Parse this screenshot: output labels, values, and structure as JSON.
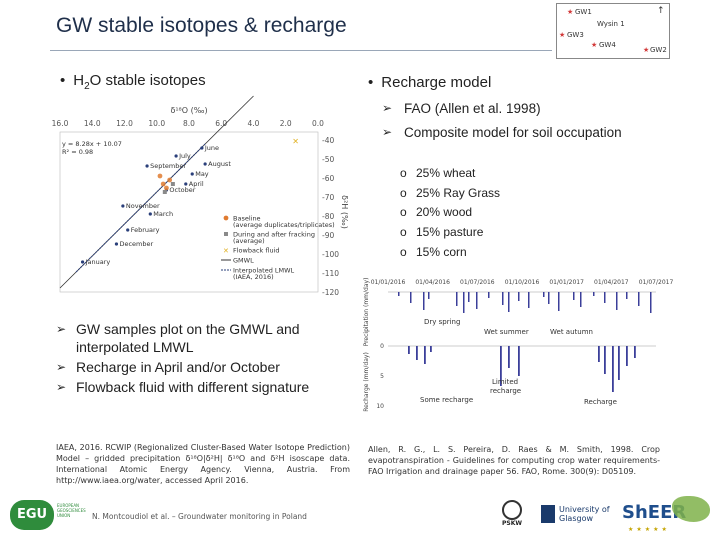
{
  "slide": {
    "title": "GW stable isotopes & recharge",
    "footer": "N. Montcoudiol et al. – Groundwater monitoring in Poland"
  },
  "minimap": {
    "labels": [
      "GW1",
      "Wysin 1",
      "GW3",
      "GW4",
      "GW2"
    ]
  },
  "left": {
    "bullet_main": "H",
    "bullet_sub": "2",
    "bullet_rest": "O stable isotopes",
    "points": [
      "GW samples plot on the GMWL and interpolated LMWL",
      "Recharge in April and/or October",
      "Flowback fluid with different signature"
    ],
    "reference": "IAEA, 2016. RCWIP (Regionalized Cluster-Based Water Isotope Prediction) Model – gridded precipitation δ¹⁸O|δ²H| δ¹⁸O and δ²H isoscape data. International Atomic Energy Agency. Vienna, Austria. From http://www.iaea.org/water, accessed April 2016."
  },
  "right": {
    "bullet": "Recharge model",
    "points": [
      "FAO (Allen et al. 1998)",
      "Composite model for soil occupation"
    ],
    "crops": [
      "25% wheat",
      "25% Ray Grass",
      "20% wood",
      "15% pasture",
      "15% corn"
    ],
    "reference": "Allen, R. G., L. S. Pereira, D. Raes & M. Smith, 1998. Crop evapotranspiration - Guidelines for computing crop water requirements-FAO Irrigation and drainage paper 56. FAO, Rome. 300(9): D05109."
  },
  "chart_data": [
    {
      "type": "scatter",
      "title": "",
      "xlabel": "δ¹⁸O (‰)",
      "ylabel": "δ²H (‰)",
      "x_ticks": [
        "16.0",
        "14.0",
        "12.0",
        "10.0",
        "8.0",
        "6.0",
        "4.0",
        "2.0",
        "0.0"
      ],
      "y_ticks": [
        "-40",
        "-50",
        "-60",
        "-70",
        "-80",
        "-90",
        "-100",
        "-110",
        "-120"
      ],
      "xlim": [
        -16,
        0
      ],
      "ylim": [
        -120,
        -40
      ],
      "equation": "y = 8.28x + 10.07",
      "r2": "R² = 0.98",
      "months": [
        {
          "label": "June",
          "x": -7.2,
          "y": -48
        },
        {
          "label": "July",
          "x": -8.8,
          "y": -52
        },
        {
          "label": "August",
          "x": -7.0,
          "y": -56
        },
        {
          "label": "September",
          "x": -10.6,
          "y": -57
        },
        {
          "label": "May",
          "x": -7.8,
          "y": -61
        },
        {
          "label": "April",
          "x": -8.2,
          "y": -66
        },
        {
          "label": "October",
          "x": -9.4,
          "y": -69
        },
        {
          "label": "November",
          "x": -12.1,
          "y": -77
        },
        {
          "label": "March",
          "x": -10.4,
          "y": -81
        },
        {
          "label": "February",
          "x": -11.8,
          "y": -89
        },
        {
          "label": "December",
          "x": -12.5,
          "y": -96
        },
        {
          "label": "January",
          "x": -14.6,
          "y": -105
        }
      ],
      "legend": [
        "Baseline (average duplicates/triplicates)",
        "During and after fracking (average)",
        "Flowback fluid",
        "GMWL",
        "Interpolated LMWL (IAEA, 2016)"
      ],
      "colors": {
        "baseline": "#e07b30",
        "fracking": "#8a8a8a",
        "flowback": "#e0b020",
        "lmwl": "#2a3f7a",
        "gmwl": "#333333"
      }
    },
    {
      "type": "bar",
      "title": "",
      "date_labels": [
        "01/01/2016",
        "01/04/2016",
        "01/07/2016",
        "01/10/2016",
        "01/01/2017",
        "01/04/2017",
        "01/07/2017"
      ],
      "top_ylabel": "Precipitation (mm/day)",
      "bottom_ylabel": "Recharge (mm/day)",
      "bottom_ticks": [
        "0",
        "5",
        "10"
      ],
      "annotations": [
        "Dry spring",
        "Wet summer",
        "Wet autumn",
        "Some recharge",
        "Limited recharge",
        "Recharge"
      ],
      "color": "#3b3f9a"
    }
  ],
  "logos": {
    "egu": "EGU",
    "egu_sub": "EUROPEAN GEOSCIENCES UNION",
    "pskw": "PSKW",
    "glasgow": "University of Glasgow",
    "sheer": "ShEER"
  }
}
